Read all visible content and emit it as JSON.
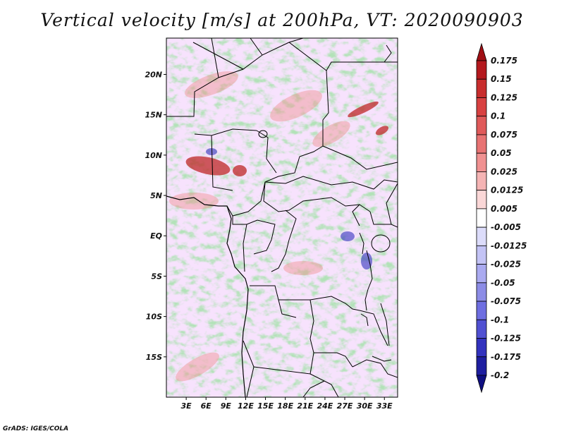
{
  "title": "Vertical velocity [m/s] at 200hPa, VT: 2020090903",
  "credit": "GrADS: IGES/COLA",
  "map": {
    "lon_range": [
      0,
      35
    ],
    "lat_range": [
      -20,
      24.5
    ],
    "lat_ticks": [
      "20N",
      "15N",
      "10N",
      "5N",
      "EQ",
      "5S",
      "10S",
      "15S"
    ],
    "lon_ticks": [
      "3E",
      "6E",
      "9E",
      "12E",
      "15E",
      "18E",
      "21E",
      "24E",
      "27E",
      "30E",
      "33E"
    ],
    "field": "Vertical velocity",
    "level": "200hPa",
    "valid_time": "2020090903"
  },
  "colorbar": {
    "labels": [
      "0.175",
      "0.15",
      "0.125",
      "0.1",
      "0.075",
      "0.05",
      "0.025",
      "0.0125",
      "0.005",
      "-0.005",
      "-0.0125",
      "-0.025",
      "-0.05",
      "-0.075",
      "-0.1",
      "-0.125",
      "-0.175",
      "-0.2"
    ],
    "colors": [
      "#a00f14",
      "#b4191e",
      "#c82d2d",
      "#d84141",
      "#e05a5a",
      "#e87373",
      "#f09191",
      "#f5b4b4",
      "#fad7d7",
      "#ffffff",
      "#dcdcfa",
      "#c3c3f5",
      "#aaaaf0",
      "#8c8ce6",
      "#6e6ee1",
      "#5050d2",
      "#3232be",
      "#1e1ea0",
      "#0f0f82"
    ],
    "extends": "both"
  }
}
